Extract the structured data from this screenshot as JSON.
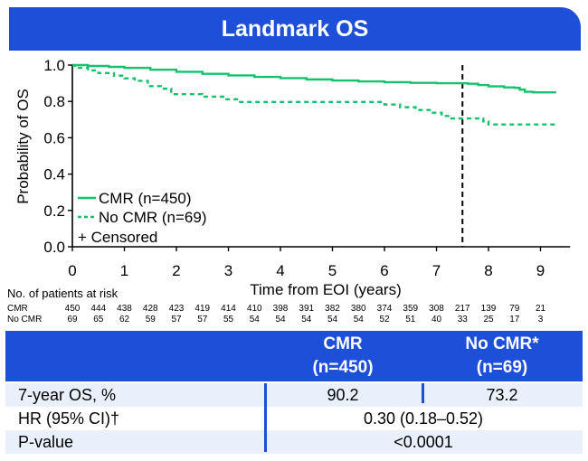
{
  "banner": {
    "title": "Landmark OS"
  },
  "chart_data": {
    "type": "line",
    "subtype": "kaplan-meier",
    "title": "Landmark OS",
    "xlabel": "Time from EOI (years)",
    "ylabel": "Probability of OS",
    "xlim": [
      0,
      9.5
    ],
    "ylim": [
      0,
      1
    ],
    "xticks": [
      "0",
      "1",
      "2",
      "3",
      "4",
      "5",
      "6",
      "7",
      "8",
      "9"
    ],
    "yticks": [
      "0.0",
      "0.2",
      "0.4",
      "0.6",
      "0.8",
      "1.0"
    ],
    "reference_line_x": 7.5,
    "series": [
      {
        "name": "CMR (n=450)",
        "color": "#14c26e",
        "style": "solid",
        "points": [
          [
            0,
            1.0
          ],
          [
            0.3,
            0.995
          ],
          [
            0.7,
            0.99
          ],
          [
            1.0,
            0.985
          ],
          [
            1.5,
            0.975
          ],
          [
            2.0,
            0.963
          ],
          [
            2.5,
            0.952
          ],
          [
            3.0,
            0.943
          ],
          [
            3.5,
            0.935
          ],
          [
            4.0,
            0.928
          ],
          [
            4.5,
            0.921
          ],
          [
            5.0,
            0.915
          ],
          [
            5.5,
            0.91
          ],
          [
            6.0,
            0.906
          ],
          [
            6.5,
            0.902
          ],
          [
            7.0,
            0.9
          ],
          [
            7.5,
            0.9
          ],
          [
            7.6,
            0.897
          ],
          [
            7.8,
            0.89
          ],
          [
            8.0,
            0.883
          ],
          [
            8.3,
            0.877
          ],
          [
            8.5,
            0.875
          ],
          [
            8.6,
            0.865
          ],
          [
            8.7,
            0.853
          ],
          [
            8.85,
            0.85
          ],
          [
            9.3,
            0.85
          ]
        ]
      },
      {
        "name": "No CMR (n=69)",
        "color": "#14c26e",
        "style": "dashed",
        "points": [
          [
            0,
            1.0
          ],
          [
            0.05,
            0.985
          ],
          [
            0.3,
            0.971
          ],
          [
            0.5,
            0.956
          ],
          [
            0.8,
            0.942
          ],
          [
            1.0,
            0.927
          ],
          [
            1.2,
            0.913
          ],
          [
            1.45,
            0.884
          ],
          [
            1.7,
            0.87
          ],
          [
            1.9,
            0.84
          ],
          [
            2.5,
            0.826
          ],
          [
            2.9,
            0.812
          ],
          [
            3.2,
            0.797
          ],
          [
            5.7,
            0.797
          ],
          [
            6.0,
            0.783
          ],
          [
            6.3,
            0.768
          ],
          [
            6.6,
            0.753
          ],
          [
            6.9,
            0.738
          ],
          [
            7.1,
            0.72
          ],
          [
            7.25,
            0.706
          ],
          [
            7.7,
            0.706
          ],
          [
            7.9,
            0.69
          ],
          [
            8.0,
            0.673
          ],
          [
            9.3,
            0.673
          ]
        ]
      }
    ],
    "legend": {
      "position": "bottom-left",
      "entries": [
        "CMR (n=450)",
        "No CMR (n=69)",
        "+ Censored"
      ]
    },
    "risk_table": {
      "title": "No. of patients at risk",
      "rows": [
        {
          "label": "CMR",
          "values": [
            "450",
            "444",
            "438",
            "428",
            "423",
            "419",
            "414",
            "410",
            "398",
            "391",
            "382",
            "380",
            "374",
            "359",
            "308",
            "217",
            "139",
            "79",
            "21"
          ]
        },
        {
          "label": "No CMR",
          "values": [
            "69",
            "65",
            "62",
            "59",
            "57",
            "57",
            "55",
            "54",
            "54",
            "54",
            "54",
            "54",
            "52",
            "51",
            "40",
            "33",
            "25",
            "17",
            "3"
          ]
        }
      ]
    }
  },
  "results": {
    "headers": [
      {
        "name": "CMR",
        "n": "(n=450)"
      },
      {
        "name": "No CMR*",
        "n": "(n=69)"
      }
    ],
    "rows": [
      {
        "label": "7-year OS, %",
        "cmr": "90.2",
        "nocmr": "73.2"
      },
      {
        "label": "HR (95% CI)†",
        "value": "0.30 (0.18–0.52)"
      },
      {
        "label": "P-value",
        "value": "<0.0001"
      }
    ]
  }
}
